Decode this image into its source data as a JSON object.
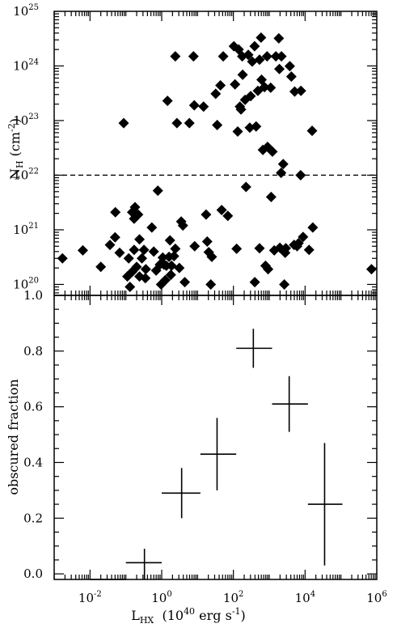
{
  "chart_data": [
    {
      "type": "scatter",
      "title": "",
      "xscale": "log",
      "yscale": "log",
      "xlim": [
        0.001,
        1000000
      ],
      "ylim": [
        6.3e+19,
        1e+25
      ],
      "ylabel": {
        "main": "N",
        "sub": "H",
        "rest": " (cm",
        "sup": "-2",
        "close": ")"
      },
      "y_ticks": [
        {
          "value": 1e+20,
          "base": "10",
          "exp": "20"
        },
        {
          "value": 1e+21,
          "base": "10",
          "exp": "21"
        },
        {
          "value": 1e+22,
          "base": "10",
          "exp": "22"
        },
        {
          "value": 1e+23,
          "base": "10",
          "exp": "23"
        },
        {
          "value": 1e+24,
          "base": "10",
          "exp": "24"
        },
        {
          "value": 1e+25,
          "base": "10",
          "exp": "25"
        }
      ],
      "reference_line": {
        "y": 1e+22,
        "style": "dashed"
      },
      "marker": "diamond",
      "marker_color": "#000000",
      "points": [
        [
          0.0017,
          3e+20
        ],
        [
          0.0063,
          4.2e+20
        ],
        [
          0.02,
          2.1e+20
        ],
        [
          0.036,
          5.3e+20
        ],
        [
          0.05,
          7.3e+20
        ],
        [
          0.051,
          2.1e+21
        ],
        [
          0.067,
          3.8e+20
        ],
        [
          0.087,
          9e+22
        ],
        [
          0.11,
          1.4e+20
        ],
        [
          0.12,
          3e+20
        ],
        [
          0.13,
          9e+19
        ],
        [
          0.15,
          2.1e+21
        ],
        [
          0.15,
          1.7e+20
        ],
        [
          0.17,
          4.3e+20
        ],
        [
          0.17,
          1.6e+21
        ],
        [
          0.18,
          2.6e+21
        ],
        [
          0.2,
          2.1e+20
        ],
        [
          0.22,
          1.9e+21
        ],
        [
          0.24,
          1.4e+20
        ],
        [
          0.28,
          3e+20
        ],
        [
          0.24,
          6.7e+20
        ],
        [
          0.32,
          4.3e+20
        ],
        [
          0.35,
          1.3e+20
        ],
        [
          0.36,
          1.9e+20
        ],
        [
          0.6,
          4e+20
        ],
        [
          0.53,
          1.1e+21
        ],
        [
          0.7,
          1.8e+20
        ],
        [
          0.78,
          5.2e+21
        ],
        [
          0.89,
          2.3e+20
        ],
        [
          0.96,
          1e+20
        ],
        [
          1.07,
          3.1e+20
        ],
        [
          1.15,
          2.3e+20
        ],
        [
          1.26,
          1.2e+20
        ],
        [
          1.35,
          2.2e+20
        ],
        [
          1.45,
          2.3e+23
        ],
        [
          1.6,
          3.2e+20
        ],
        [
          1.7,
          6.4e+20
        ],
        [
          1.8,
          1.5e+20
        ],
        [
          1.88,
          2.2e+20
        ],
        [
          2.2,
          3.3e+20
        ],
        [
          2.4,
          4.5e+20
        ],
        [
          2.66,
          9e+22
        ],
        [
          2.4,
          1.5e+24
        ],
        [
          3.1,
          2e+20
        ],
        [
          3.5,
          1.42e+21
        ],
        [
          3.9,
          1.2e+21
        ],
        [
          4.4,
          1.1e+20
        ],
        [
          5.9,
          9e+22
        ],
        [
          7.7,
          1.5e+24
        ],
        [
          8.1,
          1.9e+23
        ],
        [
          8.3,
          5e+20
        ],
        [
          14.7,
          1.8e+23
        ],
        [
          17.3,
          1.9e+21
        ],
        [
          18.6,
          6.1e+20
        ],
        [
          20.5,
          3.9e+20
        ],
        [
          23.4,
          1e+20
        ],
        [
          25,
          3.2e+20
        ],
        [
          32.1,
          3.1e+23
        ],
        [
          35.3,
          8.3e+22
        ],
        [
          43.5,
          4.4e+23
        ],
        [
          47,
          2.3e+21
        ],
        [
          52,
          1.5e+24
        ],
        [
          69.8,
          1.8e+21
        ],
        [
          103,
          2.3e+24
        ],
        [
          111,
          4.6e+23
        ],
        [
          123,
          4.5e+20
        ],
        [
          132,
          6.3e+22
        ],
        [
          140,
          2e+24
        ],
        [
          152,
          1.8e+23
        ],
        [
          163,
          1.6e+23
        ],
        [
          176,
          1.5e+24
        ],
        [
          181,
          6.9e+23
        ],
        [
          212,
          2.4e+23
        ],
        [
          225,
          6.1e+21
        ],
        [
          260,
          1.6e+24
        ],
        [
          286,
          7.4e+22
        ],
        [
          303,
          2.8e+23
        ],
        [
          335,
          1.2e+24
        ],
        [
          390,
          2.3e+24
        ],
        [
          395,
          1.1e+20
        ],
        [
          430,
          7.8e+22
        ],
        [
          482,
          3.5e+23
        ],
        [
          535,
          4.6e+20
        ],
        [
          535,
          1.3e+24
        ],
        [
          590,
          3.3e+24
        ],
        [
          611,
          5.6e+23
        ],
        [
          665,
          2.9e+22
        ],
        [
          737,
          4.1e+23
        ],
        [
          786,
          2.2e+20
        ],
        [
          930,
          1.9e+20
        ],
        [
          870,
          1.5e+24
        ],
        [
          900,
          3.3e+22
        ],
        [
          1097,
          4e+23
        ],
        [
          1130,
          4e+21
        ],
        [
          1226,
          2.7e+22
        ],
        [
          1380,
          4.2e+20
        ],
        [
          1530,
          1.5e+24
        ],
        [
          1850,
          3.2e+24
        ],
        [
          1917,
          8.8e+23
        ],
        [
          1980,
          4.7e+20
        ],
        [
          2140,
          1.1e+22
        ],
        [
          2190,
          1.5e+24
        ],
        [
          2450,
          1.6e+22
        ],
        [
          2630,
          1e+20
        ],
        [
          2780,
          3.8e+20
        ],
        [
          2900,
          4.6e+20
        ],
        [
          3740,
          9.9e+23
        ],
        [
          4140,
          6.4e+23
        ],
        [
          4920,
          5.3e+20
        ],
        [
          5120,
          3.4e+23
        ],
        [
          5990,
          5e+20
        ],
        [
          6570,
          5.7e+20
        ],
        [
          7520,
          1e+22
        ],
        [
          7660,
          3.5e+23
        ],
        [
          8780,
          7.4e+20
        ],
        [
          12900,
          4.3e+20
        ],
        [
          15700,
          6.5e+22
        ],
        [
          16400,
          1.1e+21
        ],
        [
          711000,
          1.9e+20
        ]
      ]
    },
    {
      "type": "errorbar",
      "title": "",
      "xscale": "log",
      "yscale": "linear",
      "xlim": [
        0.001,
        1000000
      ],
      "ylim": [
        -0.02,
        1.0
      ],
      "xlabel": {
        "main": "L",
        "sub": "HX",
        "pre": "  (10",
        "sup": "40",
        "rest": " erg s",
        "sup2": "-1",
        "close": ")"
      },
      "ylabel": "obscured fraction",
      "x_ticks": [
        {
          "value": 0.01,
          "base": "10",
          "exp": "-2"
        },
        {
          "value": 1,
          "base": "10",
          "exp": "0"
        },
        {
          "value": 100,
          "base": "10",
          "exp": "2"
        },
        {
          "value": 10000,
          "base": "10",
          "exp": "4"
        },
        {
          "value": 1000000,
          "base": "10",
          "exp": "6"
        }
      ],
      "y_ticks": [
        {
          "value": 0.0,
          "label": "0.0"
        },
        {
          "value": 0.2,
          "label": "0.2"
        },
        {
          "value": 0.4,
          "label": "0.4"
        },
        {
          "value": 0.6,
          "label": "0.6"
        },
        {
          "value": 0.8,
          "label": "0.8"
        },
        {
          "value": 1.0,
          "label": "1.0"
        }
      ],
      "points": [
        {
          "x": 0.032,
          "x_lo": 0.01,
          "x_hi": 0.1,
          "y": -0.02,
          "y_lo": -0.02,
          "y_hi": -0.02
        },
        {
          "x": 0.33,
          "x_lo": 0.1,
          "x_hi": 1.0,
          "y": 0.04,
          "y_lo": -0.02,
          "y_hi": 0.09
        },
        {
          "x": 3.6,
          "x_lo": 1.0,
          "x_hi": 12,
          "y": 0.29,
          "y_lo": 0.2,
          "y_hi": 0.38
        },
        {
          "x": 35,
          "x_lo": 12,
          "x_hi": 120,
          "y": 0.43,
          "y_lo": 0.3,
          "y_hi": 0.56
        },
        {
          "x": 360,
          "x_lo": 120,
          "x_hi": 1200,
          "y": 0.81,
          "y_lo": 0.74,
          "y_hi": 0.88
        },
        {
          "x": 3600,
          "x_lo": 1200,
          "x_hi": 12000,
          "y": 0.61,
          "y_lo": 0.51,
          "y_hi": 0.71
        },
        {
          "x": 35000,
          "x_lo": 12000,
          "x_hi": 110000,
          "y": 0.25,
          "y_lo": 0.03,
          "y_hi": 0.47
        }
      ]
    }
  ]
}
